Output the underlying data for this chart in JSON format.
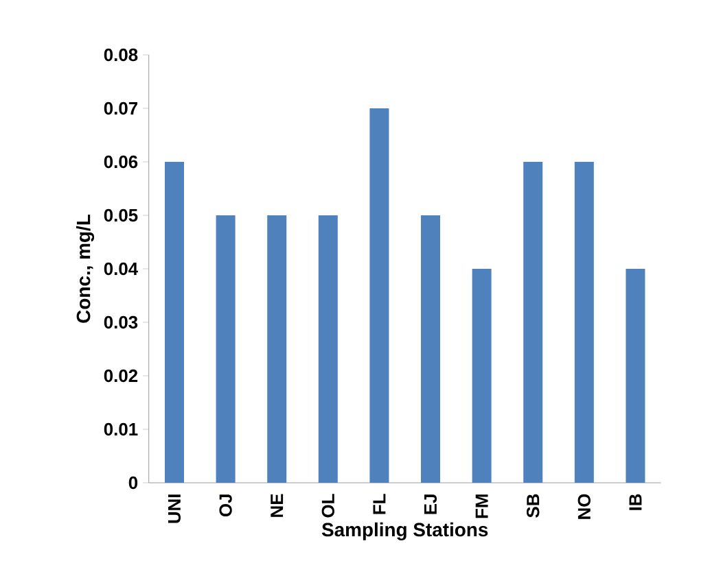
{
  "chart_data": {
    "type": "bar",
    "xlabel": "Sampling Stations",
    "ylabel": "Conc., mg/L",
    "categories": [
      "UNI",
      "OJ",
      "NE",
      "OL",
      "FL",
      "EJ",
      "FM",
      "SB",
      "NO",
      "IB"
    ],
    "values": [
      0.06,
      0.05,
      0.05,
      0.05,
      0.07,
      0.05,
      0.04,
      0.06,
      0.06,
      0.04
    ],
    "color": "#4f81bd",
    "ylim": [
      0,
      0.08
    ],
    "yticks": [
      0,
      0.01,
      0.02,
      0.03,
      0.04,
      0.05,
      0.06,
      0.07,
      0.08
    ],
    "grid": false
  }
}
